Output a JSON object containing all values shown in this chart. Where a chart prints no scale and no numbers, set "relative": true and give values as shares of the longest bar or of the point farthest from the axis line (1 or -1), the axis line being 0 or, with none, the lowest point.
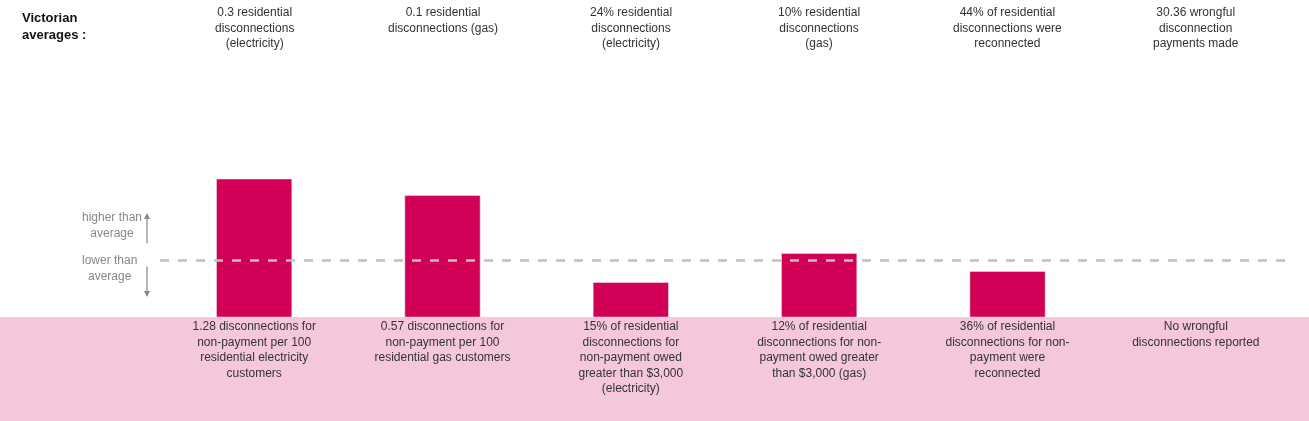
{
  "chart_data": {
    "type": "bar",
    "relative": true,
    "categories": [
      "1.28 disconnections for\nnon-payment per 100\nresidential electricity\ncustomers",
      "0.57 disconnections for\nnon-payment per 100\nresidential gas customers",
      "15% of residential\ndisconnections for\nnon-payment owed\ngreater than $3,000\n(electricity)",
      "12% of residential\ndisconnections for non-\npayment owed greater\nthan $3,000 (gas)",
      "36% of residential\ndisconnections for non-\npayment were\nreconnected",
      "No wrongful\ndisconnections reported"
    ],
    "values": [
      1.0,
      0.88,
      0.25,
      0.46,
      0.33,
      null
    ],
    "color": "#d10056",
    "ref_lines": [
      {
        "axis": "y",
        "value": 0.41,
        "color": "#c0c0c0",
        "line_style": "dashed"
      }
    ],
    "annotations": [
      "Victorian\naverages :",
      "0.3 residential\ndisconnections\n(electricity)",
      "0.1 residential\ndisconnections (gas)",
      "24% residential\ndisconnections\n(electricity)",
      "10% residential\ndisconnections\n(gas)",
      "44% of residential\ndisconnections were\nreconnected",
      "30.36 wrongful\ndisconnection\npayments made",
      "higher than\naverage",
      "lower than\naverage"
    ],
    "orientation": "vertical"
  }
}
